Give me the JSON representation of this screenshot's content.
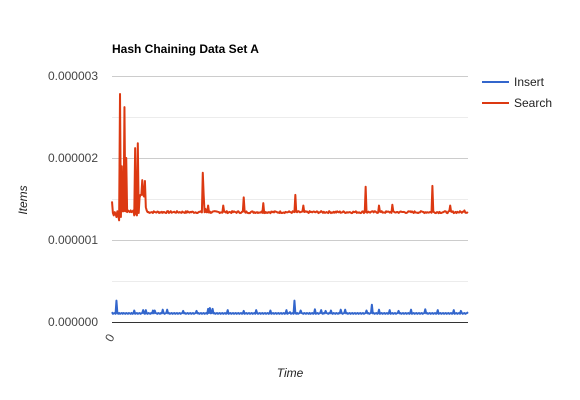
{
  "chart_data": {
    "type": "line",
    "title": "Hash Chaining Data Set A",
    "xlabel": "Time",
    "ylabel": "Items",
    "x_tick_labels": [
      "0"
    ],
    "xlim": [
      0,
      400
    ],
    "ylim": [
      0,
      3e-06
    ],
    "y_ticks": [
      0,
      1e-06,
      2e-06,
      3e-06
    ],
    "y_tick_labels": [
      "0.000000",
      "0.000001",
      "0.000002",
      "0.000003"
    ],
    "grid": true,
    "legend_position": "right",
    "series": [
      {
        "name": "Insert",
        "color": "#3366cc",
        "values": [
          1.2e-07,
          1e-07,
          1.05e-07,
          1.1e-07,
          1e-07,
          2.6e-07,
          1.1e-07,
          1e-07,
          1.1e-07,
          1e-07,
          1.05e-07,
          1.1e-07,
          1e-07,
          1.1e-07,
          1.05e-07,
          1e-07,
          1.1e-07,
          1.05e-07,
          1e-07,
          1.1e-07,
          1.05e-07,
          1e-07,
          1.1e-07,
          1e-07,
          1.05e-07,
          1.1e-07,
          1e-07,
          1.05e-07,
          1.1e-07,
          1e-07,
          1.05e-07,
          1.1e-07,
          1e-07,
          1.05e-07,
          1.1e-07,
          1.45e-07,
          1.05e-07,
          1e-07,
          1.1e-07,
          1.05e-07,
          1e-07,
          1.1e-07,
          1.05e-07,
          1e-07,
          1.1e-07,
          1.05e-07,
          1.4e-07,
          1.05e-07,
          1e-07,
          1.1e-07,
          1.05e-07,
          1e-07,
          1.1e-07,
          1.05e-07,
          1e-07,
          1.1e-07,
          1.05e-07,
          1.5e-07,
          1.1e-07,
          1e-07,
          1.05e-07,
          1.1e-07,
          1e-07,
          1.05e-07,
          1.1e-07,
          1e-07,
          1.05e-07,
          1.1e-07,
          1e-07,
          1.05e-07,
          1.1e-07,
          1e-07,
          1.05e-07,
          1.1e-07,
          1e-07,
          1.05e-07,
          1.1e-07,
          1e-07,
          1.05e-07,
          1.1e-07,
          1e-07,
          1.05e-07,
          1.1e-07,
          1e-07,
          1.05e-07,
          1.1e-07,
          1e-07,
          1.05e-07,
          1.1e-07,
          1e-07,
          1.05e-07,
          1.1e-07,
          1e-07,
          1.05e-07,
          1.1e-07,
          1e-07,
          1.05e-07,
          1.1e-07,
          1e-07,
          1.05e-07,
          1.1e-07,
          1e-07,
          1.05e-07,
          1.1e-07,
          1e-07,
          1.05e-07,
          1.1e-07,
          1e-07,
          1.05e-07,
          1.1e-07,
          1e-07,
          1.05e-07,
          1.1e-07,
          1e-07,
          1.05e-07,
          1.1e-07,
          1e-07,
          1.05e-07,
          1.1e-07,
          1e-07,
          1.05e-07,
          1.1e-07,
          1e-07,
          1.05e-07,
          1.1e-07,
          1e-07,
          1.05e-07,
          1.1e-07,
          1e-07,
          1.05e-07,
          1.1e-07,
          1e-07,
          1.05e-07,
          1.1e-07,
          1e-07,
          1.05e-07,
          1.1e-07,
          1e-07,
          1.05e-07,
          1.1e-07,
          1e-07,
          1.05e-07,
          1.1e-07,
          1e-07,
          1.05e-07,
          1.1e-07,
          1e-07,
          1.05e-07,
          1.1e-07,
          1e-07,
          1.05e-07,
          1.1e-07,
          1e-07,
          1.05e-07,
          1.1e-07,
          1e-07,
          1.05e-07,
          1.1e-07,
          1e-07,
          1.05e-07,
          1.1e-07,
          1e-07,
          1.05e-07,
          1.1e-07,
          1e-07,
          1.05e-07,
          1.1e-07,
          1e-07,
          1.05e-07,
          1.1e-07,
          1e-07,
          1.05e-07,
          1.1e-07,
          1e-07,
          1.05e-07,
          1.1e-07,
          1e-07,
          1.05e-07,
          1.1e-07,
          1e-07,
          1.05e-07,
          1.1e-07,
          1e-07,
          1.05e-07,
          1.1e-07,
          1e-07,
          1.05e-07,
          1.1e-07,
          1e-07,
          1.05e-07,
          1.1e-07,
          1e-07,
          1.05e-07,
          1.1e-07,
          1e-07,
          1.05e-07,
          1.1e-07,
          1e-07,
          1.05e-07,
          1.1e-07
        ],
        "spikes": [
          [
            5,
            2.6e-07
          ],
          [
            25,
            1.4e-07
          ],
          [
            38,
            1.45e-07
          ],
          [
            48,
            1.4e-07
          ],
          [
            62,
            1.5e-07
          ],
          [
            80,
            1.35e-07
          ],
          [
            95,
            1.35e-07
          ],
          [
            108,
            1.6e-07
          ],
          [
            110,
            1.7e-07
          ],
          [
            113,
            1.6e-07
          ],
          [
            130,
            1.45e-07
          ],
          [
            148,
            1.35e-07
          ],
          [
            162,
            1.45e-07
          ],
          [
            178,
            1.4e-07
          ],
          [
            196,
            1.45e-07
          ],
          [
            212,
            1.4e-07
          ],
          [
            228,
            1.55e-07
          ],
          [
            240,
            1.35e-07
          ],
          [
            262,
            1.5e-07
          ],
          [
            286,
            1.4e-07
          ],
          [
            292,
            2.1e-07
          ],
          [
            300,
            1.5e-07
          ],
          [
            312,
            1.45e-07
          ],
          [
            322,
            1.35e-07
          ],
          [
            336,
            1.5e-07
          ],
          [
            352,
            1.55e-07
          ],
          [
            366,
            1.45e-07
          ],
          [
            384,
            1.45e-07
          ],
          [
            392,
            1.35e-07
          ]
        ]
      },
      {
        "name": "Search",
        "color": "#dc3912",
        "values": [
          1.47e-06,
          1.33e-06,
          1.3e-06,
          1.34e-06,
          1.32e-06,
          1.28e-06,
          1.35e-06,
          1.3e-06,
          1.24e-06,
          2.78e-06,
          1.28e-06,
          1.9e-06,
          1.35e-06,
          1.35e-06,
          2.62e-06,
          1.35e-06,
          2e-06,
          1.34e-06,
          1.36e-06,
          1.35e-06,
          1.34e-06,
          1.36e-06,
          1.34e-06,
          1.35e-06,
          1.36e-06,
          1.3e-06,
          2.12e-06,
          1.32e-06,
          1.3e-06,
          2.18e-06,
          1.33e-06,
          1.52e-06,
          1.55e-06,
          1.55e-06,
          1.73e-06,
          1.55e-06,
          1.53e-06,
          1.72e-06,
          1.4e-06,
          1.36e-06
        ],
        "tail_value": 1.34e-06,
        "spikes": [
          [
            102,
            1.82e-06
          ],
          [
            103,
            1.55e-06
          ],
          [
            105,
            1.38e-06
          ],
          [
            108,
            1.42e-06
          ],
          [
            125,
            1.42e-06
          ],
          [
            148,
            1.52e-06
          ],
          [
            170,
            1.45e-06
          ],
          [
            206,
            1.55e-06
          ],
          [
            215,
            1.42e-06
          ],
          [
            285,
            1.65e-06
          ],
          [
            300,
            1.42e-06
          ],
          [
            315,
            1.43e-06
          ],
          [
            360,
            1.66e-06
          ],
          [
            380,
            1.42e-06
          ],
          [
            396,
            1.36e-06
          ]
        ]
      }
    ]
  }
}
